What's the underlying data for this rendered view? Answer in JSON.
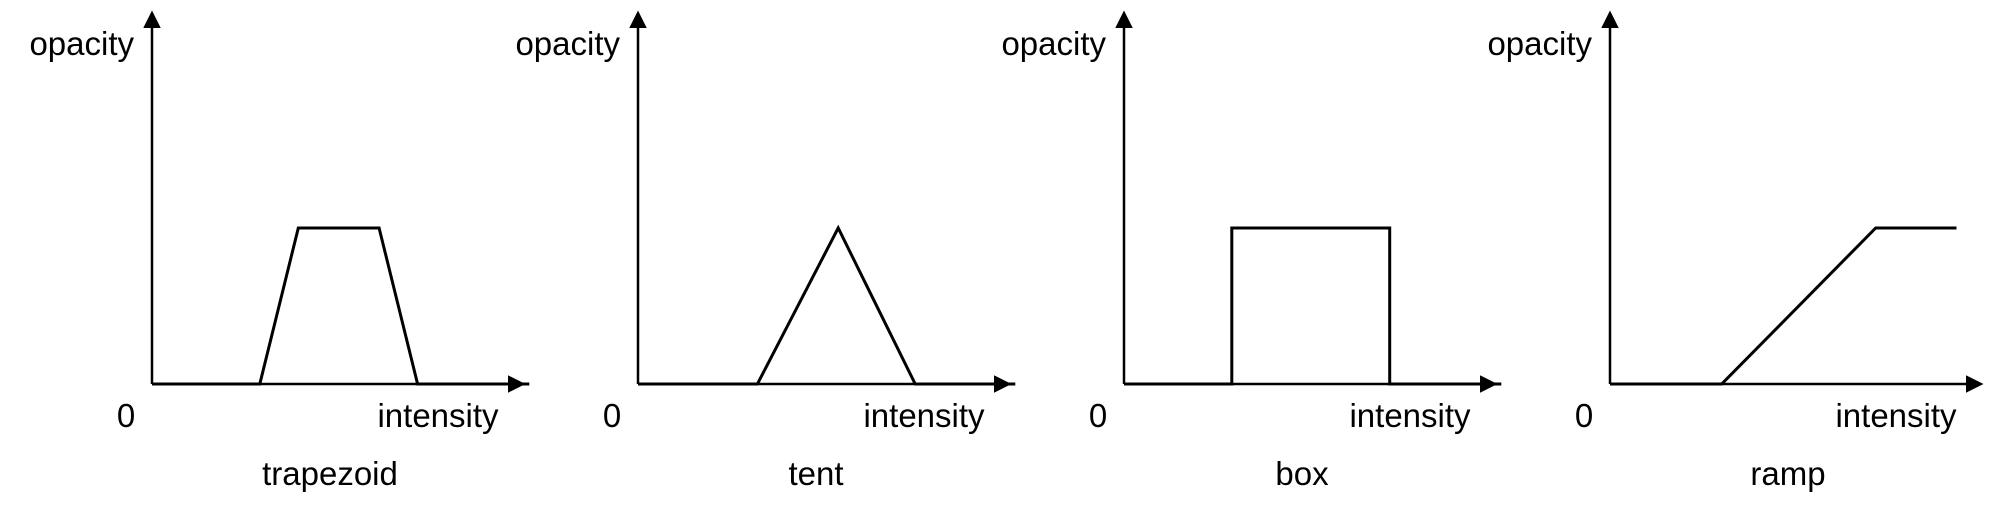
{
  "colors": {
    "stroke": "#000000",
    "background": "#ffffff"
  },
  "panels": [
    {
      "caption": "trapezoid",
      "y_label": "opacity",
      "x_label": "intensity",
      "origin_label": "0",
      "shape": "trapezoid",
      "points": [
        [
          0,
          0
        ],
        [
          0.28,
          0
        ],
        [
          0.38,
          1
        ],
        [
          0.59,
          1
        ],
        [
          0.69,
          0
        ],
        [
          0.98,
          0
        ]
      ]
    },
    {
      "caption": "tent",
      "y_label": "opacity",
      "x_label": "intensity",
      "origin_label": "0",
      "shape": "tent",
      "points": [
        [
          0,
          0
        ],
        [
          0.31,
          0
        ],
        [
          0.52,
          1
        ],
        [
          0.72,
          0
        ],
        [
          0.98,
          0
        ]
      ]
    },
    {
      "caption": "box",
      "y_label": "opacity",
      "x_label": "intensity",
      "origin_label": "0",
      "shape": "box",
      "points": [
        [
          0,
          0
        ],
        [
          0.28,
          0
        ],
        [
          0.28,
          1
        ],
        [
          0.69,
          1
        ],
        [
          0.69,
          0
        ],
        [
          0.98,
          0
        ]
      ]
    },
    {
      "caption": "ramp",
      "y_label": "opacity",
      "x_label": "intensity",
      "origin_label": "0",
      "shape": "ramp",
      "points": [
        [
          0,
          0
        ],
        [
          0.29,
          0
        ],
        [
          0.69,
          1
        ],
        [
          0.9,
          1
        ]
      ]
    }
  ]
}
